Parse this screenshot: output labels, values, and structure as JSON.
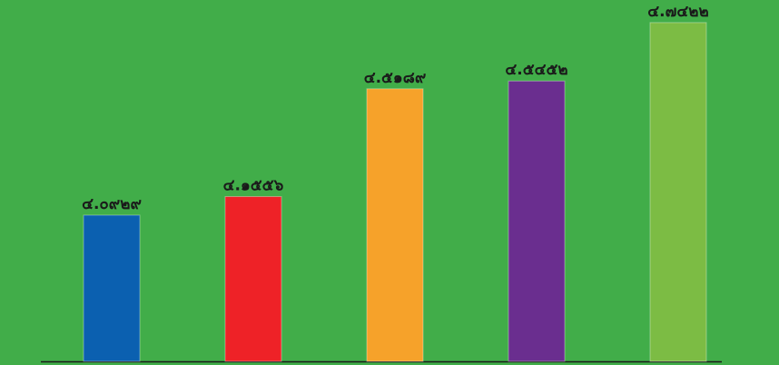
{
  "chart_data": {
    "type": "bar",
    "categories": [
      null,
      null,
      null,
      null,
      null
    ],
    "values": [
      4.0929,
      4.1556,
      4.5189,
      4.5452,
      4.7422
    ],
    "value_labels": [
      "๔.๐๙๒๙",
      "๔.๑๕๕๖",
      "๔.๕๑๘๙",
      "๔.๕๔๕๒",
      "๔.๗๔๒๒"
    ],
    "colors": [
      "#0b60b0",
      "#ee2227",
      "#f6a22a",
      "#6a2e8f",
      "#7cbc44"
    ],
    "ylim": [
      3.6,
      4.8
    ]
  }
}
